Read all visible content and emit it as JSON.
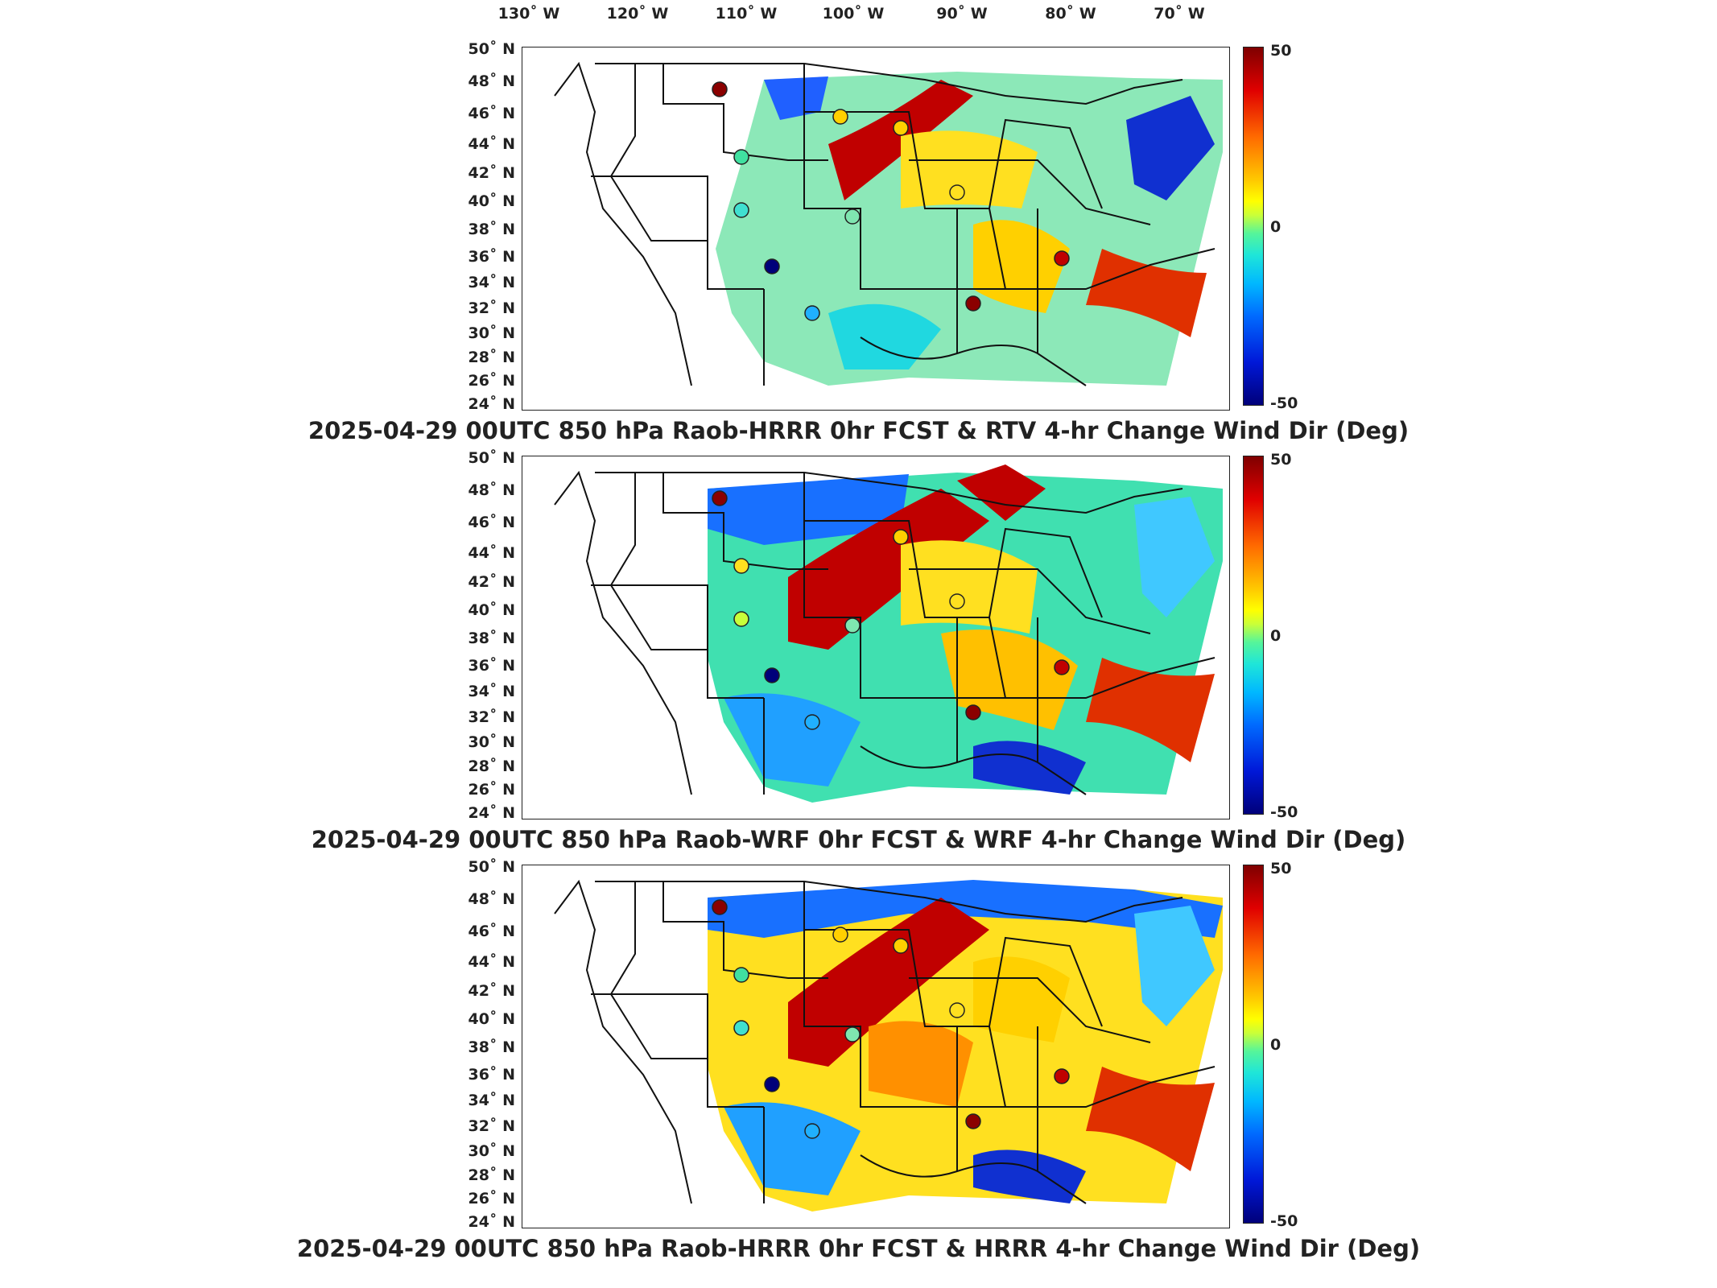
{
  "lon_ticks": [
    "130˚ W",
    "120˚ W",
    "110˚ W",
    "100˚ W",
    "90˚ W",
    "80˚ W",
    "70˚ W"
  ],
  "lat_ticks": [
    "50˚ N",
    "48˚ N",
    "46˚ N",
    "44˚ N",
    "42˚ N",
    "40˚ N",
    "38˚ N",
    "36˚ N",
    "34˚ N",
    "32˚ N",
    "30˚ N",
    "28˚ N",
    "26˚ N",
    "24˚ N"
  ],
  "colorbar": {
    "max_label": "50",
    "mid_label": "0",
    "min_label": "-50"
  },
  "panels": [
    {
      "title": "2025-04-29 00UTC 850 hPa Raob-HRRR 0hr FCST & RTV 4-hr Change Wind Dir (Deg)"
    },
    {
      "title": "2025-04-29 00UTC 850 hPa Raob-WRF 0hr FCST & WRF 4-hr Change Wind Dir (Deg)"
    },
    {
      "title": "2025-04-29 00UTC 850 hPa Raob-HRRR 0hr FCST & HRRR 4-hr Change Wind Dir (Deg)"
    }
  ],
  "colors": {
    "high": "#7f0000",
    "mid": "#40e0a0",
    "low": "#00007a"
  }
}
